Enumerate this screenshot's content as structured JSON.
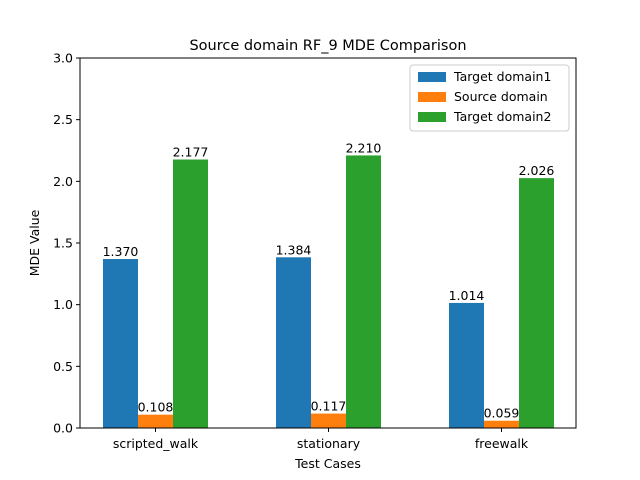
{
  "chart_data": {
    "type": "bar",
    "title": "Source domain RF_9 MDE Comparison",
    "xlabel": "Test Cases",
    "ylabel": "MDE Value",
    "categories": [
      "scripted_walk",
      "stationary",
      "freewalk"
    ],
    "ylim": [
      0,
      3.0
    ],
    "yticks": [
      "0.0",
      "0.5",
      "1.0",
      "1.5",
      "2.0",
      "2.5",
      "3.0"
    ],
    "legend_position": "top-right",
    "grid": false,
    "series": [
      {
        "name": "Target domain1",
        "color": "#1f77b4",
        "values": [
          1.37,
          1.384,
          1.014
        ],
        "labels": [
          "1.370",
          "1.384",
          "1.014"
        ]
      },
      {
        "name": "Source domain",
        "color": "#ff7f0e",
        "values": [
          0.108,
          0.117,
          0.059
        ],
        "labels": [
          "0.108",
          "0.117",
          "0.059"
        ]
      },
      {
        "name": "Target domain2",
        "color": "#2ca02c",
        "values": [
          2.177,
          2.21,
          2.026
        ],
        "labels": [
          "2.177",
          "2.210",
          "2.026"
        ]
      }
    ]
  }
}
